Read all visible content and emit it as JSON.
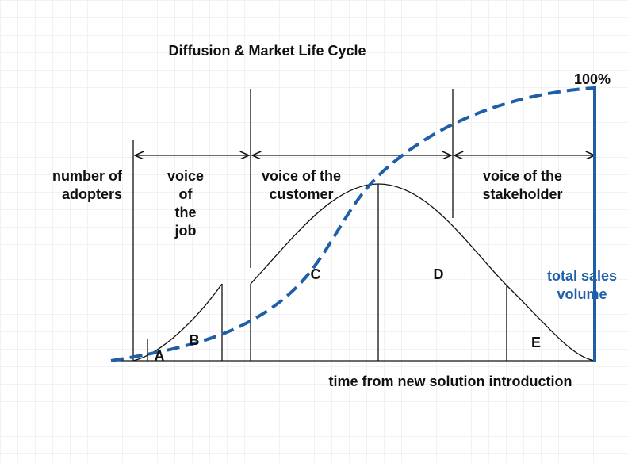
{
  "title": "Diffusion & Market Life Cycle",
  "y_label": [
    "number of",
    "adopters"
  ],
  "x_label": "time from new solution introduction",
  "phases": [
    [
      "voice",
      "of",
      "the",
      "job"
    ],
    [
      "voice of the",
      "customer"
    ],
    [
      "voice of the",
      "stakeholder"
    ]
  ],
  "segments": [
    "A",
    "B",
    "C",
    "D",
    "E"
  ],
  "cumulative_top": "100%",
  "cumulative_label": [
    "total sales",
    "volume"
  ]
}
